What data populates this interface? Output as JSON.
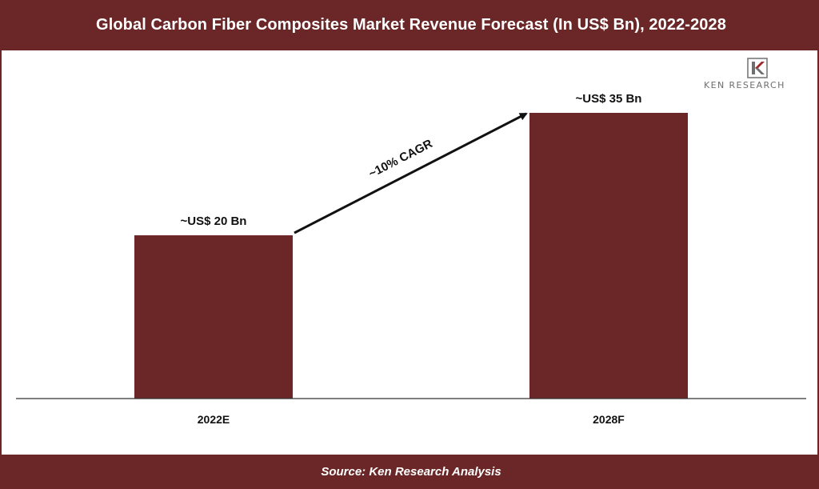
{
  "header": {
    "title": "Global Carbon Fiber Composites Market Revenue Forecast (In US$ Bn), 2022-2028"
  },
  "footer": {
    "source": "Source: Ken Research Analysis"
  },
  "logo": {
    "text": "KEN RESEARCH",
    "icon": "ken-research-k-logo"
  },
  "colors": {
    "bar": "#6b2727",
    "header": "#6b2727",
    "axis": "#333333"
  },
  "chart_data": {
    "type": "bar",
    "title": "Global Carbon Fiber Composites Market Revenue Forecast (In US$ Bn), 2022-2028",
    "categories": [
      "2022E",
      "2028F"
    ],
    "values": [
      20,
      35
    ],
    "data_labels": [
      "~US$ 20 Bn",
      "~US$ 35 Bn"
    ],
    "annotation": "~10% CAGR",
    "ylim": [
      0,
      40
    ],
    "grid": false,
    "legend": "none"
  }
}
